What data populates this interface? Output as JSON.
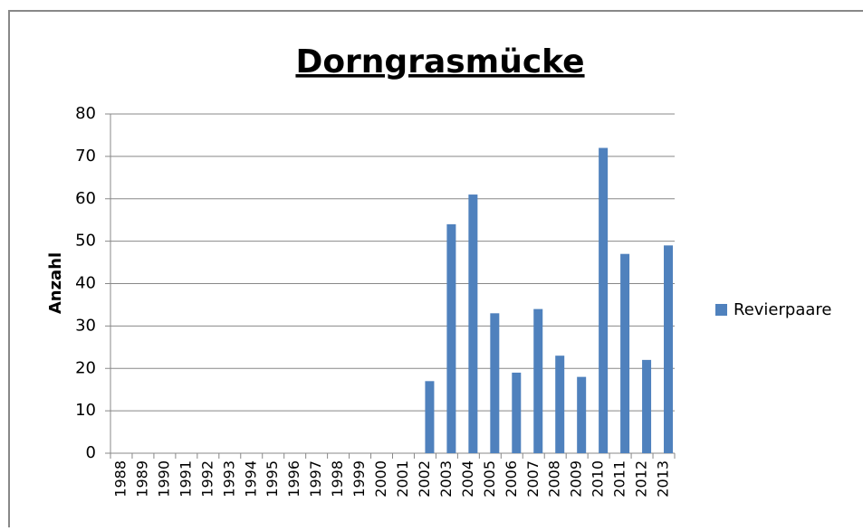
{
  "chart_data": {
    "type": "bar",
    "title": "Dorngrasmücke",
    "y_label": "Anzahl",
    "categories": [
      "1988",
      "1989",
      "1990",
      "1991",
      "1992",
      "1993",
      "1994",
      "1995",
      "1996",
      "1997",
      "1998",
      "1999",
      "2000",
      "2001",
      "2002",
      "2003",
      "2004",
      "2005",
      "2006",
      "2007",
      "2008",
      "2009",
      "2010",
      "2011",
      "2012",
      "2013"
    ],
    "series": [
      {
        "name": "Revierpaare",
        "color": "#4f81bd",
        "values": [
          0,
          0,
          0,
          0,
          0,
          0,
          0,
          0,
          0,
          0,
          0,
          0,
          0,
          0,
          17,
          54,
          61,
          33,
          19,
          34,
          23,
          18,
          72,
          47,
          22,
          49
        ]
      }
    ],
    "ylim": [
      0,
      80
    ],
    "yticks": [
      0,
      10,
      20,
      30,
      40,
      50,
      60,
      70,
      80
    ],
    "grid": true,
    "legend": "right"
  }
}
